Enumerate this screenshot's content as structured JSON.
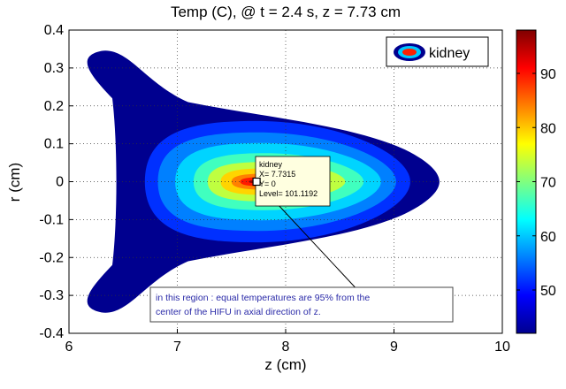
{
  "chart_data": {
    "type": "contour",
    "title": "Temp (C), @ t = 2.4 s, z = 7.73 cm",
    "xlabel": "z (cm)",
    "ylabel": "r (cm)",
    "xlim": [
      6,
      10
    ],
    "ylim": [
      -0.4,
      0.4
    ],
    "x_ticks": [
      "6",
      "7",
      "8",
      "9",
      "10"
    ],
    "y_ticks": [
      "0.4",
      "0.3",
      "0.2",
      "0.1",
      "0",
      "-0.1",
      "-0.2",
      "-0.3",
      "-0.4"
    ],
    "grid": true,
    "legend": {
      "entries": [
        "kidney"
      ],
      "placement": "top-right"
    },
    "colorbar": {
      "min": 42,
      "max": 98,
      "ticks": [
        "90",
        "80",
        "70",
        "60",
        "50"
      ],
      "colormap": "jet"
    },
    "peak": {
      "z": 7.7315,
      "r": 0,
      "level": 101.1192
    },
    "contour_levels": [
      {
        "level": 45,
        "color": "#00008f",
        "z_min": 6.15,
        "z_max": 9.42,
        "r_max": 0.355
      },
      {
        "level": 52,
        "color": "#0030ff",
        "z_min": 6.7,
        "z_max": 9.15,
        "r_max": 0.16
      },
      {
        "level": 58,
        "color": "#0080ff",
        "z_min": 6.82,
        "z_max": 9.02,
        "r_max": 0.13
      },
      {
        "level": 64,
        "color": "#00d4ff",
        "z_min": 6.98,
        "z_max": 8.88,
        "r_max": 0.102
      },
      {
        "level": 70,
        "color": "#40ffbf",
        "z_min": 7.15,
        "z_max": 8.72,
        "r_max": 0.075
      },
      {
        "level": 76,
        "color": "#bfff40",
        "z_min": 7.28,
        "z_max": 8.55,
        "r_max": 0.052
      },
      {
        "level": 82,
        "color": "#ffd400",
        "z_min": 7.4,
        "z_max": 8.4,
        "r_max": 0.035
      },
      {
        "level": 88,
        "color": "#ff8000",
        "z_min": 7.5,
        "z_max": 8.25,
        "r_max": 0.021
      },
      {
        "level": 94,
        "color": "#ff1a00",
        "z_min": 7.58,
        "z_max": 8.1,
        "r_max": 0.012
      },
      {
        "level": 98,
        "color": "#9a0000",
        "z_min": 7.66,
        "z_max": 7.98,
        "r_max": 0.005
      }
    ],
    "datatip": {
      "lines": [
        "kidney",
        "X= 7.7315",
        "Y= 0",
        "Level= 101.1192"
      ],
      "x": 7.7315,
      "y": 0
    },
    "annotation": {
      "lines": [
        "in this region : equal temperatures are 95% from the",
        "center of the HIFU in axial direction of z."
      ],
      "arrow_from": [
        7.83,
        -0.03
      ],
      "arrow_to": [
        8.71,
        -0.3
      ]
    }
  }
}
